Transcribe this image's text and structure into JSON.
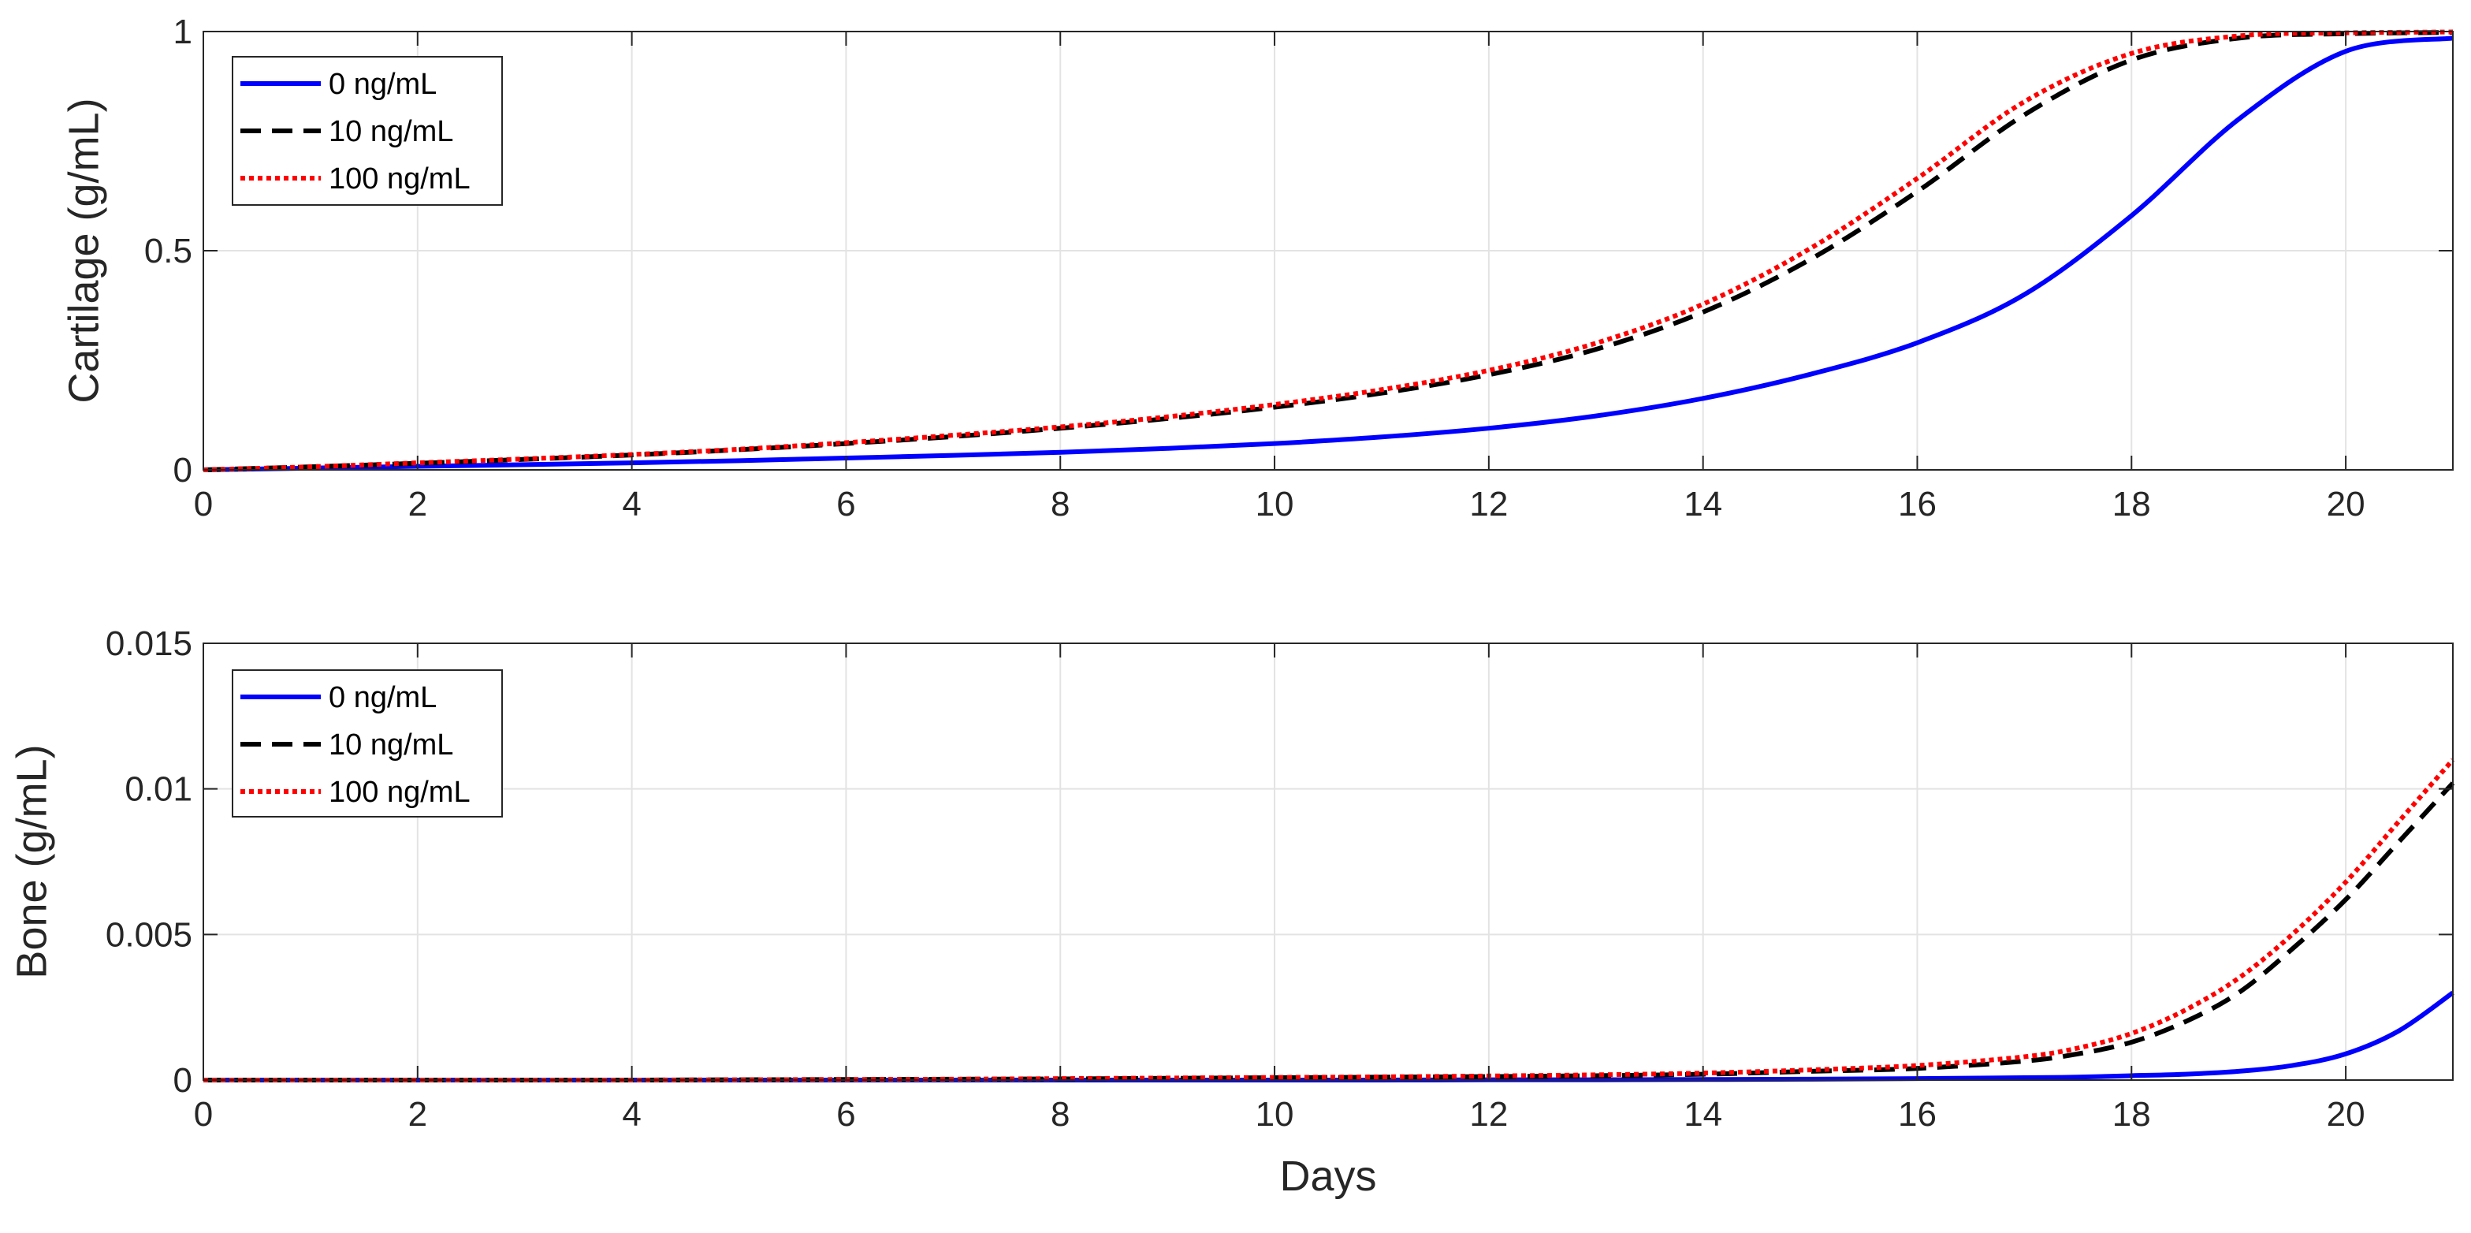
{
  "chart_data": [
    {
      "type": "line",
      "title": "",
      "xlabel": "",
      "ylabel": "Cartilage (g/mL)",
      "xlim": [
        0,
        21
      ],
      "ylim": [
        0,
        1
      ],
      "xticks": [
        0,
        2,
        4,
        6,
        8,
        10,
        12,
        14,
        16,
        18,
        20
      ],
      "yticks": [
        0,
        0.5,
        1
      ],
      "x_tick_labels": [
        "0",
        "2",
        "4",
        "6",
        "8",
        "10",
        "12",
        "14",
        "16",
        "18",
        "20"
      ],
      "y_tick_labels": [
        "0",
        "0.5",
        "1"
      ],
      "grid": true,
      "legend_position": "top-left",
      "x": [
        0,
        1,
        2,
        3,
        4,
        5,
        6,
        7,
        8,
        9,
        10,
        11,
        12,
        13,
        14,
        15,
        16,
        17,
        18,
        19,
        20,
        21
      ],
      "series": [
        {
          "name": "0 ng/mL",
          "color": "#0000ff",
          "style": "solid",
          "values": [
            0.0,
            0.004,
            0.008,
            0.012,
            0.016,
            0.021,
            0.027,
            0.033,
            0.04,
            0.049,
            0.06,
            0.075,
            0.095,
            0.123,
            0.163,
            0.218,
            0.29,
            0.4,
            0.58,
            0.8,
            0.955,
            0.985
          ]
        },
        {
          "name": "10 ng/mL",
          "color": "#000000",
          "style": "dashed",
          "values": [
            0.0,
            0.007,
            0.015,
            0.024,
            0.034,
            0.046,
            0.06,
            0.076,
            0.095,
            0.117,
            0.143,
            0.175,
            0.217,
            0.275,
            0.36,
            0.48,
            0.635,
            0.81,
            0.935,
            0.985,
            0.995,
            0.998
          ]
        },
        {
          "name": "100 ng/mL",
          "color": "#ff0000",
          "style": "dotted",
          "values": [
            0.0,
            0.007,
            0.016,
            0.025,
            0.035,
            0.047,
            0.062,
            0.079,
            0.098,
            0.121,
            0.149,
            0.183,
            0.227,
            0.289,
            0.378,
            0.505,
            0.665,
            0.84,
            0.95,
            0.99,
            0.997,
            0.999
          ]
        }
      ]
    },
    {
      "type": "line",
      "title": "",
      "xlabel": "Days",
      "ylabel": "Bone (g/mL)",
      "xlim": [
        0,
        21
      ],
      "ylim": [
        0,
        0.015
      ],
      "xticks": [
        0,
        2,
        4,
        6,
        8,
        10,
        12,
        14,
        16,
        18,
        20
      ],
      "yticks": [
        0,
        0.005,
        0.01,
        0.015
      ],
      "x_tick_labels": [
        "0",
        "2",
        "4",
        "6",
        "8",
        "10",
        "12",
        "14",
        "16",
        "18",
        "20"
      ],
      "y_tick_labels": [
        "0",
        "0.005",
        "0.01",
        "0.015"
      ],
      "grid": true,
      "legend_position": "top-left",
      "x": [
        0,
        1,
        2,
        3,
        4,
        5,
        6,
        7,
        8,
        9,
        10,
        11,
        12,
        13,
        14,
        15,
        16,
        17,
        17.5,
        18,
        18.5,
        19,
        19.5,
        20,
        20.5,
        21
      ],
      "series": [
        {
          "name": "0 ng/mL",
          "color": "#0000ff",
          "style": "solid",
          "values": [
            0,
            0,
            0,
            0,
            0,
            0,
            0,
            0,
            0,
            0,
            0,
            0,
            1e-05,
            1e-05,
            2e-05,
            3e-05,
            5e-05,
            8e-05,
            0.0001,
            0.00015,
            0.0002,
            0.0003,
            0.0005,
            0.0009,
            0.0017,
            0.003
          ]
        },
        {
          "name": "10 ng/mL",
          "color": "#000000",
          "style": "dashed",
          "values": [
            0,
            0,
            0,
            0,
            0,
            1e-05,
            2e-05,
            3e-05,
            4e-05,
            6e-05,
            8e-05,
            0.0001,
            0.00012,
            0.00015,
            0.0002,
            0.0003,
            0.0004,
            0.00065,
            0.0009,
            0.0013,
            0.002,
            0.003,
            0.0045,
            0.0062,
            0.0082,
            0.0102
          ]
        },
        {
          "name": "100 ng/mL",
          "color": "#ff0000",
          "style": "dotted",
          "values": [
            0,
            0,
            0,
            0,
            0,
            1e-05,
            2e-05,
            3e-05,
            5e-05,
            7e-05,
            9e-05,
            0.00011,
            0.00014,
            0.00018,
            0.00024,
            0.00035,
            0.0005,
            0.0008,
            0.0011,
            0.0016,
            0.0024,
            0.0035,
            0.005,
            0.0068,
            0.0089,
            0.011
          ]
        }
      ]
    }
  ]
}
